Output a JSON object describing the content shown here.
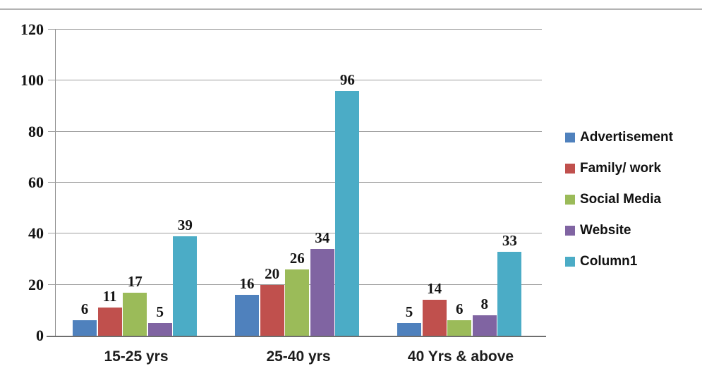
{
  "chart_data": {
    "type": "bar",
    "title": "",
    "xlabel": "",
    "ylabel": "",
    "categories": [
      "15-25 yrs",
      "25-40 yrs",
      "40 Yrs & above"
    ],
    "series": [
      {
        "name": "Advertisement",
        "color": "#4F81BD",
        "values": [
          6,
          16,
          5
        ]
      },
      {
        "name": "Family/ work",
        "color": "#C0504D",
        "values": [
          11,
          20,
          14
        ]
      },
      {
        "name": "Social Media",
        "color": "#9BBB59",
        "values": [
          17,
          26,
          6
        ]
      },
      {
        "name": "Website",
        "color": "#8064A2",
        "values": [
          5,
          34,
          8
        ]
      },
      {
        "name": "Column1",
        "color": "#4BACC6",
        "values": [
          39,
          96,
          33
        ]
      }
    ],
    "ylim": [
      0,
      120
    ],
    "yticks": [
      0,
      20,
      40,
      60,
      80,
      100,
      120
    ],
    "grid": true,
    "data_labels": true,
    "legend_position": "right"
  },
  "colors": {
    "gridline": "#9e9e9e",
    "axis_left": "#8c8c8c",
    "axis_bottom": "#6e6e6e",
    "top_border": "#b3b3b3",
    "background": "#ffffff"
  }
}
